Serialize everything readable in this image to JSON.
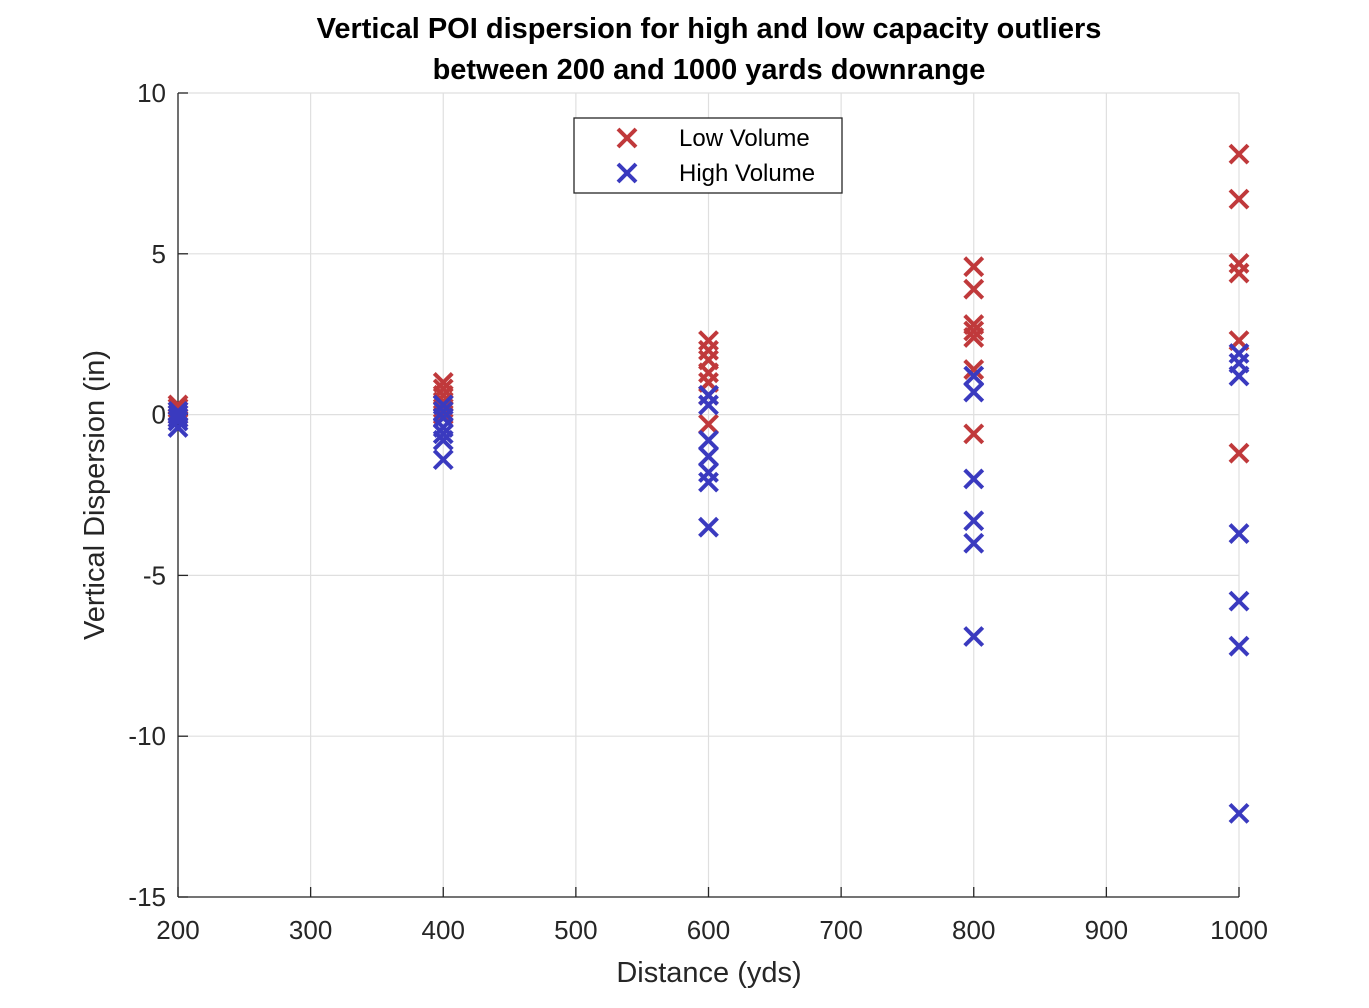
{
  "chart_data": {
    "type": "scatter",
    "title": [
      "Vertical POI dispersion for high and low capacity outliers",
      "between 200 and 1000 yards downrange"
    ],
    "xlabel": "Distance (yds)",
    "ylabel": "Vertical Dispersion (in)",
    "xlim": [
      200,
      1000
    ],
    "ylim": [
      -15,
      10
    ],
    "xticks": [
      200,
      300,
      400,
      500,
      600,
      700,
      800,
      900,
      1000
    ],
    "yticks": [
      10,
      5,
      0,
      -5,
      -10,
      -15
    ],
    "grid": true,
    "legend_position": "top-center",
    "marker": "x",
    "series": [
      {
        "name": "Low Volume",
        "color": "#c0393b",
        "points": [
          [
            200,
            0.3
          ],
          [
            200,
            0.2
          ],
          [
            200,
            0.1
          ],
          [
            200,
            0.0
          ],
          [
            200,
            -0.1
          ],
          [
            400,
            1.0
          ],
          [
            400,
            0.8
          ],
          [
            400,
            0.6
          ],
          [
            400,
            0.4
          ],
          [
            400,
            0.2
          ],
          [
            400,
            0.0
          ],
          [
            600,
            2.3
          ],
          [
            600,
            2.0
          ],
          [
            600,
            1.7
          ],
          [
            600,
            1.3
          ],
          [
            600,
            1.0
          ],
          [
            600,
            0.6
          ],
          [
            600,
            -0.3
          ],
          [
            800,
            4.6
          ],
          [
            800,
            3.9
          ],
          [
            800,
            2.8
          ],
          [
            800,
            2.6
          ],
          [
            800,
            2.4
          ],
          [
            800,
            1.4
          ],
          [
            800,
            -0.6
          ],
          [
            1000,
            8.1
          ],
          [
            1000,
            6.7
          ],
          [
            1000,
            4.7
          ],
          [
            1000,
            4.4
          ],
          [
            1000,
            2.3
          ],
          [
            1000,
            -1.2
          ]
        ]
      },
      {
        "name": "High Volume",
        "color": "#3a3abf",
        "points": [
          [
            200,
            0.1
          ],
          [
            200,
            0.0
          ],
          [
            200,
            -0.1
          ],
          [
            200,
            -0.2
          ],
          [
            200,
            -0.4
          ],
          [
            400,
            0.3
          ],
          [
            400,
            0.1
          ],
          [
            400,
            -0.1
          ],
          [
            400,
            -0.4
          ],
          [
            400,
            -0.6
          ],
          [
            400,
            -0.8
          ],
          [
            400,
            -1.4
          ],
          [
            600,
            0.6
          ],
          [
            600,
            0.3
          ],
          [
            600,
            -0.8
          ],
          [
            600,
            -1.3
          ],
          [
            600,
            -1.8
          ],
          [
            600,
            -2.1
          ],
          [
            600,
            -3.5
          ],
          [
            800,
            1.2
          ],
          [
            800,
            0.7
          ],
          [
            800,
            -2.0
          ],
          [
            800,
            -3.3
          ],
          [
            800,
            -4.0
          ],
          [
            800,
            -6.9
          ],
          [
            1000,
            1.9
          ],
          [
            1000,
            1.6
          ],
          [
            1000,
            1.2
          ],
          [
            1000,
            -3.7
          ],
          [
            1000,
            -5.8
          ],
          [
            1000,
            -7.2
          ],
          [
            1000,
            -12.4
          ]
        ]
      }
    ]
  }
}
